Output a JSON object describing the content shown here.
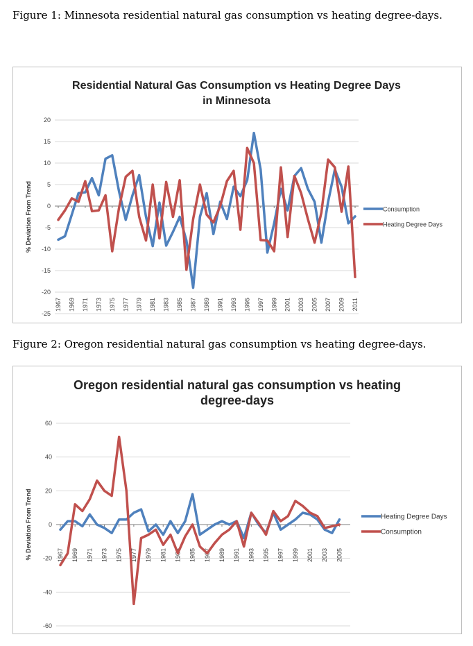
{
  "figure1_caption": "Figure 1: Minnesota residential natural gas consumption vs heating degree-days.",
  "figure2_caption": "Figure 2: Oregon residential natural gas consumption vs heating degree-days.",
  "chart_data": [
    {
      "type": "line",
      "title": "Residential Natural Gas Consumption vs Heating Degree Days in Minnesota",
      "title_lines": [
        "Residential Natural Gas Consumption vs Heating Degree Days",
        "in Minnesota"
      ],
      "ylabel": "% Deviation From Trend",
      "xlabel": "",
      "ylim": [
        -25,
        20
      ],
      "yticks": [
        20,
        15,
        10,
        5,
        0,
        -5,
        -10,
        -15,
        -20,
        -25
      ],
      "x_start": 1967,
      "x_end": 2011,
      "xtick_labels": [
        "1967",
        "1969",
        "1971",
        "1973",
        "1975",
        "1977",
        "1979",
        "1981",
        "1983",
        "1985",
        "1987",
        "1989",
        "1991",
        "1993",
        "1995",
        "1997",
        "1999",
        "2001",
        "2003",
        "2005",
        "2007",
        "2009",
        "2011"
      ],
      "legend_position": "right",
      "series": [
        {
          "name": "Consumption",
          "color": "#4f81bd",
          "values": [
            -7.8,
            -7,
            -2,
            3,
            3.2,
            6.5,
            2.5,
            11,
            11.8,
            3.5,
            -3.2,
            2.5,
            7.2,
            -2.5,
            -9.3,
            0.8,
            -9.2,
            -6,
            -2.5,
            -8,
            -19,
            -2.5,
            3,
            -6.5,
            1,
            -3,
            4.5,
            2.3,
            6,
            17,
            8.5,
            -10.8,
            -4,
            4,
            -1,
            7,
            8.8,
            4,
            1,
            -8.5,
            1,
            8.5,
            4.5,
            -4,
            -2.4
          ]
        },
        {
          "name": "Heating Degree Days",
          "color": "#c0504d",
          "values": [
            -3.2,
            -1,
            1.8,
            1,
            5.8,
            -1.2,
            -1,
            2.5,
            -10.5,
            -0.5,
            6.8,
            8.2,
            -2.5,
            -8,
            5,
            -7.5,
            5.6,
            -2.5,
            6,
            -14.8,
            -3,
            5,
            -2,
            -3.8,
            0,
            5.8,
            8.2,
            -5.5,
            13.5,
            10,
            -7.9,
            -8,
            -10.5,
            9,
            -7.2,
            7,
            3,
            -3,
            -8.5,
            -1.5,
            10.8,
            9,
            -1.3,
            9.2,
            -16.5
          ]
        }
      ]
    },
    {
      "type": "line",
      "title": "Oregon residential natural gas consumption vs heating degree-days",
      "title_lines": [
        "Oregon residential natural gas consumption vs heating",
        "degree-days"
      ],
      "ylabel": "% Deviation From Trend",
      "xlabel": "",
      "ylim": [
        -60,
        60
      ],
      "yticks": [
        60,
        40,
        20,
        0,
        -20,
        -40,
        -60
      ],
      "x_start": 1967,
      "x_end": 2006,
      "xtick_labels": [
        "1967",
        "1969",
        "1971",
        "1973",
        "1975",
        "1977",
        "1979",
        "1981",
        "1983",
        "1985",
        "1987",
        "1989",
        "1991",
        "1993",
        "1995",
        "1997",
        "1999",
        "2001",
        "2003",
        "2005"
      ],
      "legend_position": "right",
      "series": [
        {
          "name": "Heating Degree Days",
          "color": "#4f81bd",
          "values": [
            -3,
            2,
            2,
            -1,
            6,
            0,
            -2,
            -5,
            3,
            3,
            7,
            9,
            -4,
            0,
            -6,
            2,
            -5,
            2,
            18,
            -6,
            -3,
            0,
            2,
            0,
            2,
            -8,
            7,
            0,
            -5,
            7,
            -3,
            0,
            3,
            7,
            6,
            3,
            -3,
            -5,
            3
          ]
        },
        {
          "name": "Consumption",
          "color": "#c0504d",
          "values": [
            -24,
            -17,
            12,
            8,
            15,
            26,
            20,
            17,
            52,
            20,
            -47,
            -8,
            -6,
            -3,
            -12,
            -6,
            -17,
            -7,
            0,
            -13,
            -17,
            -11,
            -6,
            -3,
            2,
            -13,
            7,
            1,
            -6,
            8,
            2,
            5,
            14,
            11,
            7,
            5,
            -2,
            -1,
            0
          ]
        }
      ]
    }
  ]
}
